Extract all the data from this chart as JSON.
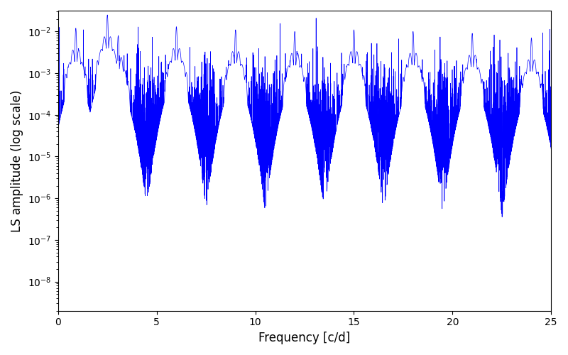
{
  "line_color": "#0000ff",
  "xlabel": "Frequency [c/d]",
  "ylabel": "LS amplitude (log scale)",
  "xlim": [
    0,
    25
  ],
  "ylim_log": [
    -8.7,
    -1.5
  ],
  "xticks": [
    0,
    5,
    10,
    15,
    20,
    25
  ],
  "background_color": "#ffffff",
  "figsize": [
    8.0,
    5.0
  ],
  "dpi": 100,
  "seed": 12345,
  "n_points": 8000,
  "peak_freqs": [
    0.9,
    2.5,
    3.05,
    6.0,
    9.0,
    12.0,
    15.0,
    18.0,
    21.0,
    24.0
  ],
  "peak_amplitudes": [
    0.012,
    0.025,
    0.008,
    0.013,
    0.011,
    0.01,
    0.011,
    0.01,
    0.009,
    0.007
  ],
  "noise_floor_log": -4.5,
  "noise_std_log": 0.8,
  "line_width": 0.5
}
